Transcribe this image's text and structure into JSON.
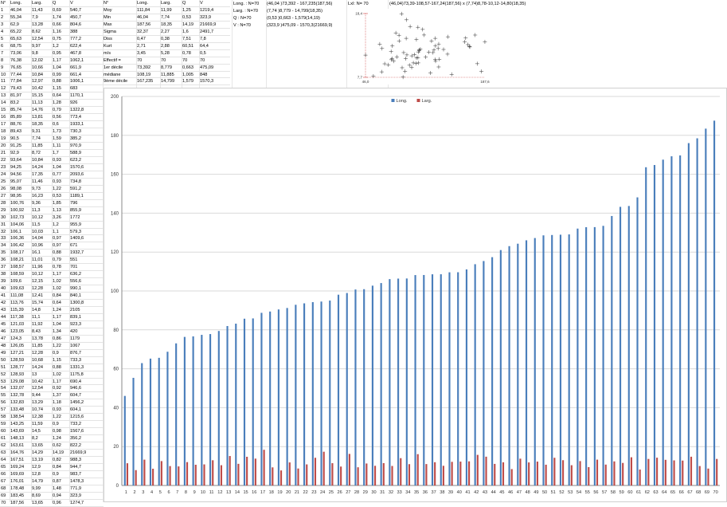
{
  "left_table": {
    "headers": [
      "N°",
      "Long.",
      "Larg.",
      "Q",
      "V"
    ],
    "rows": [
      [
        "1",
        "46,04",
        "11,43",
        "0,69",
        "540,7"
      ],
      [
        "2",
        "55,34",
        "7,9",
        "1,74",
        "450,7"
      ],
      [
        "3",
        "62,9",
        "13,28",
        "0,66",
        "804,6"
      ],
      [
        "4",
        "65,22",
        "8,62",
        "1,16",
        "388"
      ],
      [
        "5",
        "65,63",
        "12,54",
        "0,75",
        "777,2"
      ],
      [
        "6",
        "68,75",
        "9,97",
        "1,2",
        "622,4"
      ],
      [
        "7",
        "73,06",
        "9,8",
        "0,95",
        "467,8"
      ],
      [
        "8",
        "76,38",
        "12,02",
        "1,17",
        "1062,1"
      ],
      [
        "9",
        "76,65",
        "10,66",
        "1,04",
        "661,9"
      ],
      [
        "10",
        "77,44",
        "10,84",
        "0,99",
        "661,4"
      ],
      [
        "11",
        "77,84",
        "12,97",
        "0,88",
        "1006,1"
      ],
      [
        "12",
        "79,43",
        "10,42",
        "1,15",
        "683"
      ],
      [
        "13",
        "81,97",
        "15,15",
        "0,64",
        "1170,1"
      ],
      [
        "14",
        "83,2",
        "11,13",
        "1,28",
        "926"
      ],
      [
        "15",
        "85,74",
        "14,76",
        "0,79",
        "1322,8"
      ],
      [
        "16",
        "85,89",
        "13,81",
        "0,56",
        "773,4"
      ],
      [
        "17",
        "88,76",
        "18,35",
        "0,6",
        "1933,1"
      ],
      [
        "18",
        "89,43",
        "9,31",
        "1,73",
        "730,3"
      ],
      [
        "19",
        "90,5",
        "7,74",
        "1,59",
        "385,2"
      ],
      [
        "20",
        "91,25",
        "11,85",
        "1,11",
        "970,9"
      ],
      [
        "21",
        "92,9",
        "8,72",
        "1,7",
        "588,9"
      ],
      [
        "22",
        "93,64",
        "10,84",
        "0,93",
        "623,2"
      ],
      [
        "23",
        "94,25",
        "14,24",
        "1,04",
        "1570,6"
      ],
      [
        "24",
        "94,56",
        "17,35",
        "0,77",
        "2093,6"
      ],
      [
        "25",
        "95,07",
        "11,46",
        "0,93",
        "734,8"
      ],
      [
        "26",
        "98,08",
        "9,73",
        "1,22",
        "591,2"
      ],
      [
        "27",
        "98,95",
        "16,23",
        "0,53",
        "1189,1"
      ],
      [
        "28",
        "100,76",
        "9,36",
        "1,85",
        "796"
      ],
      [
        "29",
        "100,92",
        "11,3",
        "1,13",
        "855,9"
      ],
      [
        "30",
        "102,73",
        "10,12",
        "3,26",
        "1772"
      ],
      [
        "31",
        "104,06",
        "11,5",
        "1,2",
        "955,9"
      ],
      [
        "32",
        "106,1",
        "10,03",
        "1,1",
        "579,3"
      ],
      [
        "33",
        "106,36",
        "14,04",
        "0,97",
        "1409,6"
      ],
      [
        "34",
        "106,42",
        "10,96",
        "0,97",
        "671"
      ],
      [
        "35",
        "108,17",
        "16,1",
        "0,88",
        "1932,7"
      ],
      [
        "36",
        "108,21",
        "11,01",
        "0,79",
        "551"
      ],
      [
        "37",
        "108,57",
        "11,96",
        "0,78",
        "701"
      ],
      [
        "38",
        "108,59",
        "10,12",
        "1,17",
        "636,2"
      ],
      [
        "39",
        "109,6",
        "12,15",
        "1,02",
        "556,6"
      ],
      [
        "40",
        "109,63",
        "12,28",
        "1,02",
        "990,1"
      ],
      [
        "41",
        "111,08",
        "12,41",
        "0,84",
        "840,1"
      ],
      [
        "42",
        "113,76",
        "15,74",
        "0,64",
        "1300,8"
      ],
      [
        "43",
        "115,39",
        "14,8",
        "1,24",
        "2105"
      ],
      [
        "44",
        "117,38",
        "11,1",
        "1,17",
        "839,1"
      ],
      [
        "45",
        "121,03",
        "11,92",
        "1,04",
        "923,3"
      ],
      [
        "46",
        "123,05",
        "8,43",
        "1,34",
        "420"
      ],
      [
        "47",
        "124,3",
        "13,78",
        "0,86",
        "1179"
      ],
      [
        "48",
        "126,05",
        "11,85",
        "1,22",
        "1067"
      ],
      [
        "49",
        "127,21",
        "12,28",
        "0,9",
        "876,7"
      ],
      [
        "50",
        "128,59",
        "10,68",
        "1,15",
        "733,3"
      ],
      [
        "51",
        "128,77",
        "14,24",
        "0,88",
        "1331,3"
      ],
      [
        "52",
        "128,93",
        "13",
        "1,02",
        "1175,8"
      ],
      [
        "53",
        "129,08",
        "10,42",
        "1,17",
        "690,4"
      ],
      [
        "54",
        "132,07",
        "12,54",
        "0,92",
        "946,6"
      ],
      [
        "55",
        "132,78",
        "9,44",
        "1,37",
        "604,7"
      ],
      [
        "56",
        "132,83",
        "13,29",
        "1,18",
        "1456,2"
      ],
      [
        "57",
        "133,48",
        "10,74",
        "0,93",
        "604,1"
      ],
      [
        "58",
        "138,54",
        "12,38",
        "1,22",
        "1215,6"
      ],
      [
        "59",
        "143,25",
        "11,59",
        "0,9",
        "733,2"
      ],
      [
        "60",
        "143,69",
        "14,5",
        "0,98",
        "1567,6"
      ],
      [
        "61",
        "148,13",
        "8,2",
        "1,24",
        "356,2"
      ],
      [
        "62",
        "163,61",
        "13,65",
        "0,62",
        "822,2"
      ],
      [
        "63",
        "164,76",
        "14,29",
        "14,19",
        "21669,9"
      ],
      [
        "64",
        "167,51",
        "13,19",
        "0,82",
        "988,3"
      ],
      [
        "65",
        "169,24",
        "12,9",
        "0,84",
        "944,7"
      ],
      [
        "66",
        "169,69",
        "12,8",
        "0,9",
        "983,7"
      ],
      [
        "67",
        "176,01",
        "14,79",
        "0,87",
        "1478,3"
      ],
      [
        "68",
        "178,48",
        "9,99",
        "1,48",
        "771,9"
      ],
      [
        "69",
        "183,45",
        "8,69",
        "0,94",
        "323,9"
      ],
      [
        "70",
        "187,56",
        "13,65",
        "0,96",
        "1274,7"
      ]
    ]
  },
  "stats_table": {
    "headers": [
      "N°",
      "Long.",
      "Larg.",
      "Q",
      "V"
    ],
    "rows": [
      [
        "Moy",
        "111,84",
        "11,99",
        "1,25",
        "1219,4"
      ],
      [
        "Min",
        "46,04",
        "7,74",
        "0,53",
        "323,9"
      ],
      [
        "Max",
        "187,56",
        "18,35",
        "14,19",
        "21669,9"
      ],
      [
        "Sigma",
        "32,37",
        "2,27",
        "1,6",
        "2491,7"
      ],
      [
        "Diss",
        "0,47",
        "0,38",
        "7,51",
        "7,8"
      ],
      [
        "Kurt",
        "2,71",
        "2,88",
        "60,51",
        "64,4"
      ],
      [
        "m/s",
        "3,45",
        "5,28",
        "0,78",
        "0,5"
      ],
      [
        "Effectif =",
        "70",
        "70",
        "70",
        "70"
      ],
      [
        "1er décile",
        "73,392",
        "8,779",
        "0,663",
        "475,09"
      ],
      [
        "médiane",
        "108,19",
        "11,885",
        "1,005",
        "848"
      ],
      [
        "9ème décile",
        "167,235",
        "14,799",
        "1,579",
        "1570,3"
      ]
    ]
  },
  "summary": {
    "row1_label": "Long. : N=70",
    "row1_value": "(46,04 )73,392 - 167,235(187,56)",
    "row2_label": "Larg. : N=70",
    "row2_value": "(7,74 )8,779 - 14,799(18,35)",
    "row3_label": "Q : N=70",
    "row3_value": "(0,53 )0,663 - 1,579(14,19)",
    "row4_label": "V : N=70",
    "row4_value": "(323,9 )475,09 - 1570,3(21669,9)",
    "lxl_label": "LxI: N= 70",
    "lxl_value": "(46,04)73,39-108,57-167,24(187,56) x (7,74)8,78-10,12-14,80(18,35)"
  },
  "scatter": {
    "y_max_label": "18,4",
    "y_min_label": "7,7",
    "x_min_label": "46,0",
    "x_max_label": "187,6"
  },
  "chart_data": {
    "type": "bar",
    "categories": [
      "1",
      "2",
      "3",
      "4",
      "5",
      "6",
      "7",
      "8",
      "9",
      "10",
      "11",
      "12",
      "13",
      "14",
      "15",
      "16",
      "17",
      "18",
      "19",
      "20",
      "21",
      "22",
      "23",
      "24",
      "25",
      "26",
      "27",
      "28",
      "29",
      "30",
      "31",
      "32",
      "33",
      "34",
      "35",
      "36",
      "37",
      "38",
      "39",
      "40",
      "41",
      "42",
      "43",
      "44",
      "45",
      "46",
      "47",
      "48",
      "49",
      "50",
      "51",
      "52",
      "53",
      "54",
      "55",
      "56",
      "57",
      "58",
      "59",
      "60",
      "61",
      "62",
      "63",
      "64",
      "65",
      "66",
      "67",
      "68",
      "69",
      "70"
    ],
    "series": [
      {
        "name": "Long.",
        "color": "#4a7ebb",
        "values": [
          46.04,
          55.34,
          62.9,
          65.22,
          65.63,
          68.75,
          73.06,
          76.38,
          76.65,
          77.44,
          77.84,
          79.43,
          81.97,
          83.2,
          85.74,
          85.89,
          88.76,
          89.43,
          90.5,
          91.25,
          92.9,
          93.64,
          94.25,
          94.56,
          95.07,
          98.08,
          98.95,
          100.76,
          100.92,
          102.73,
          104.06,
          106.1,
          106.36,
          106.42,
          108.17,
          108.21,
          108.57,
          108.59,
          109.6,
          109.63,
          111.08,
          113.76,
          115.39,
          117.38,
          121.03,
          123.05,
          124.3,
          126.05,
          127.21,
          128.59,
          128.77,
          128.93,
          129.08,
          132.07,
          132.78,
          132.83,
          133.48,
          138.54,
          143.25,
          143.69,
          148.13,
          163.61,
          164.76,
          167.51,
          169.24,
          169.69,
          176.01,
          178.48,
          183.45,
          187.56
        ]
      },
      {
        "name": "Larg.",
        "color": "#be4b48",
        "values": [
          11.43,
          7.9,
          13.28,
          8.62,
          12.54,
          9.97,
          9.8,
          12.02,
          10.66,
          10.84,
          12.97,
          10.42,
          15.15,
          11.13,
          14.76,
          13.81,
          18.35,
          9.31,
          7.74,
          11.85,
          8.72,
          10.84,
          14.24,
          17.35,
          11.46,
          9.73,
          16.23,
          9.36,
          11.3,
          10.12,
          11.5,
          10.03,
          14.04,
          10.96,
          16.1,
          11.01,
          11.96,
          10.12,
          12.15,
          12.28,
          12.41,
          15.74,
          14.8,
          11.1,
          11.92,
          8.43,
          13.78,
          11.85,
          12.28,
          10.68,
          14.24,
          13,
          10.42,
          12.54,
          9.44,
          13.29,
          10.74,
          12.38,
          11.59,
          14.5,
          8.2,
          13.65,
          14.29,
          13.19,
          12.9,
          12.8,
          14.79,
          9.99,
          8.69,
          13.65
        ]
      }
    ],
    "ylim": [
      0,
      200
    ],
    "y_ticks": [
      "0",
      "20",
      "40",
      "60",
      "80",
      "100",
      "120",
      "140",
      "160",
      "180",
      "200"
    ],
    "grid": true,
    "legend_placement": "top-center",
    "scatter_points": {
      "x": [
        46.04,
        55.34,
        62.9,
        65.22,
        65.63,
        68.75,
        73.06,
        76.38,
        76.65,
        77.44,
        77.84,
        79.43,
        81.97,
        83.2,
        85.74,
        85.89,
        88.76,
        89.43,
        90.5,
        91.25,
        92.9,
        93.64,
        94.25,
        94.56,
        95.07,
        98.08,
        98.95,
        100.76,
        100.92,
        102.73,
        104.06,
        106.1,
        106.36,
        106.42,
        108.17,
        108.21,
        108.57,
        108.59,
        109.6,
        109.63,
        111.08,
        113.76,
        115.39,
        117.38,
        121.03,
        123.05,
        124.3,
        126.05,
        127.21,
        128.59,
        128.77,
        128.93,
        129.08,
        132.07,
        132.78,
        132.83,
        133.48,
        138.54,
        143.25,
        143.69,
        148.13,
        163.61,
        164.76,
        167.51,
        169.24,
        169.69,
        176.01,
        178.48,
        183.45,
        187.56
      ],
      "y": [
        11.43,
        7.9,
        13.28,
        8.62,
        12.54,
        9.97,
        9.8,
        12.02,
        10.66,
        10.84,
        12.97,
        10.42,
        15.15,
        11.13,
        14.76,
        13.81,
        18.35,
        9.31,
        7.74,
        11.85,
        8.72,
        10.84,
        14.24,
        17.35,
        11.46,
        9.73,
        16.23,
        9.36,
        11.3,
        10.12,
        11.5,
        10.03,
        14.04,
        10.96,
        16.1,
        11.01,
        11.96,
        10.12,
        12.15,
        12.28,
        12.41,
        15.74,
        14.8,
        11.1,
        11.92,
        8.43,
        13.78,
        11.85,
        12.28,
        10.68,
        14.24,
        13,
        10.42,
        12.54,
        9.44,
        13.29,
        10.74,
        12.38,
        11.59,
        14.5,
        8.2,
        13.65,
        14.29,
        13.19,
        12.9,
        12.8,
        14.79,
        9.99,
        8.69,
        13.65
      ]
    }
  }
}
